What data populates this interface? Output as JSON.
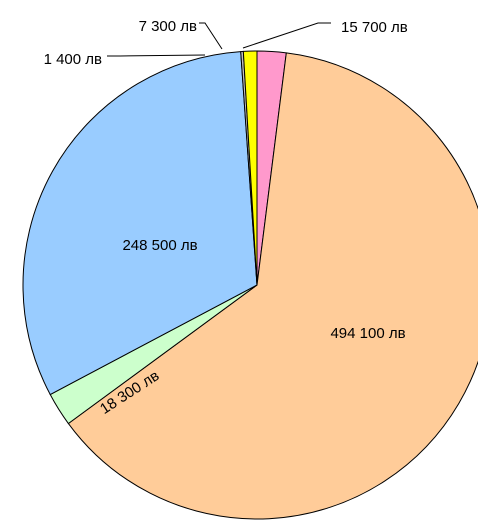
{
  "chart_data": {
    "type": "pie",
    "title": "",
    "unit": "лв",
    "slices": [
      {
        "value": 15700,
        "label": "15 700 лв",
        "color": "#ff99cc"
      },
      {
        "value": 494100,
        "label": "494 100 лв",
        "color": "#ffcc99"
      },
      {
        "value": 18300,
        "label": "18 300 лв",
        "color": "#ccffcc"
      },
      {
        "value": 248500,
        "label": "248 500 лв",
        "color": "#99ccff"
      },
      {
        "value": 1400,
        "label": "1 400 лв",
        "color": "#c0c0c0"
      },
      {
        "value": 7300,
        "label": "7 300 лв",
        "color": "#ffff00"
      }
    ]
  }
}
